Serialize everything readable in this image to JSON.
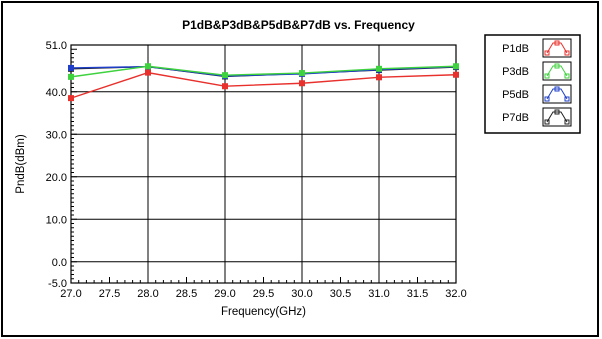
{
  "chart_data": {
    "type": "line",
    "title": "P1dB&P3dB&P5dB&P7dB vs. Frequency",
    "xlabel": "Frequency(GHz)",
    "ylabel": "PndB(dBm)",
    "xlim": [
      27.0,
      32.0
    ],
    "ylim": [
      -5.0,
      51.0
    ],
    "x_ticks": [
      "27.0",
      "27.5",
      "28.0",
      "28.5",
      "29.0",
      "29.5",
      "30.0",
      "30.5",
      "31.0",
      "31.5",
      "32.0"
    ],
    "y_ticks": [
      "51.0",
      "40.0",
      "30.0",
      "20.0",
      "10.0",
      "0.0",
      "-5.0"
    ],
    "grid": true,
    "legend_position": "right",
    "x": [
      27.0,
      28.0,
      29.0,
      30.0,
      31.0,
      32.0
    ],
    "series": [
      {
        "name": "P1dB",
        "color": "#e8302c",
        "values": [
          38.5,
          44.5,
          41.3,
          42.0,
          43.4,
          44.0
        ]
      },
      {
        "name": "P3dB",
        "color": "#3ed23e",
        "values": [
          43.5,
          46.0,
          43.9,
          44.4,
          45.4,
          46.0
        ]
      },
      {
        "name": "P5dB",
        "color": "#1f3fc8",
        "values": [
          45.6,
          45.9,
          43.7,
          44.2,
          45.2,
          45.9
        ]
      },
      {
        "name": "P7dB",
        "color": "#202020",
        "values": [
          45.4,
          45.9,
          43.6,
          44.3,
          45.1,
          45.8
        ]
      }
    ]
  }
}
